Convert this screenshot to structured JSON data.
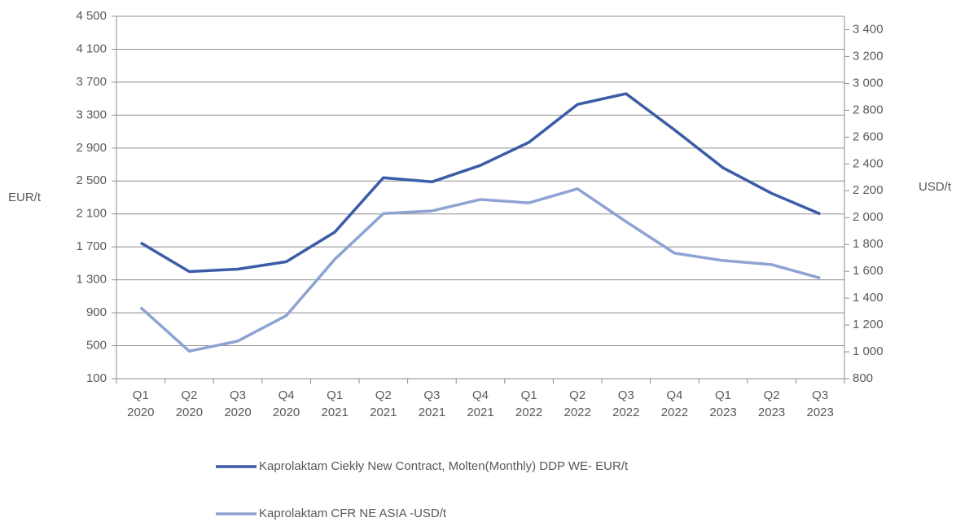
{
  "chart_data": {
    "type": "line",
    "categories": [
      "Q1 2020",
      "Q2 2020",
      "Q3 2020",
      "Q4 2020",
      "Q1 2021",
      "Q2 2021",
      "Q3 2021",
      "Q4 2021",
      "Q1 2022",
      "Q2 2022",
      "Q3 2022",
      "Q4 2022",
      "Q1 2023",
      "Q2 2023",
      "Q3 2023"
    ],
    "ylabel": "EUR/t",
    "y2label": "USD/t",
    "ylim": [
      100,
      4500
    ],
    "yticks": [
      100,
      500,
      900,
      {
        "value": 1300,
        "label": "1 300"
      },
      {
        "value": 1700,
        "label": "1 700"
      },
      {
        "value": 2100,
        "label": "2 100"
      },
      {
        "value": 2500,
        "label": "2 500"
      },
      {
        "value": 2900,
        "label": "2 900"
      },
      {
        "value": 3300,
        "label": "3 300"
      },
      {
        "value": 3700,
        "label": "3 700"
      },
      {
        "value": 4100,
        "label": "4 100"
      },
      {
        "value": 4500,
        "label": "4 500"
      }
    ],
    "y2lim": [
      800,
      3500
    ],
    "y2ticks": [
      800,
      {
        "value": 1000,
        "label": "1 000"
      },
      {
        "value": 1200,
        "label": "1 200"
      },
      {
        "value": 1400,
        "label": "1 400"
      },
      {
        "value": 1600,
        "label": "1 600"
      },
      {
        "value": 1800,
        "label": "1 800"
      },
      {
        "value": 2000,
        "label": "2 000"
      },
      {
        "value": 2200,
        "label": "2 200"
      },
      {
        "value": 2400,
        "label": "2 400"
      },
      {
        "value": 2600,
        "label": "2 600"
      },
      {
        "value": 2800,
        "label": "2 800"
      },
      {
        "value": 3000,
        "label": "3 000"
      },
      {
        "value": 3200,
        "label": "3 200"
      },
      {
        "value": 3400,
        "label": "3 400"
      }
    ],
    "grid": true,
    "series": [
      {
        "name": "Kaprolaktam Ciekły New Contract, Molten(Monthly) DDP WE- EUR/t",
        "color": "#3b5ca6",
        "values": [
          1750,
          1400,
          1430,
          1520,
          1880,
          2540,
          2490,
          2690,
          2970,
          3430,
          3560,
          3120,
          2660,
          2350,
          2100
        ]
      },
      {
        "name": "Kaprolaktam CFR NE ASIA -USD/t",
        "color": "#8ea3d3",
        "axis": "y2",
        "values": [
          1330,
          1005,
          1080,
          1270,
          1690,
          2030,
          2050,
          2135,
          2110,
          2215,
          1970,
          1735,
          1680,
          1650,
          1550
        ]
      }
    ]
  }
}
